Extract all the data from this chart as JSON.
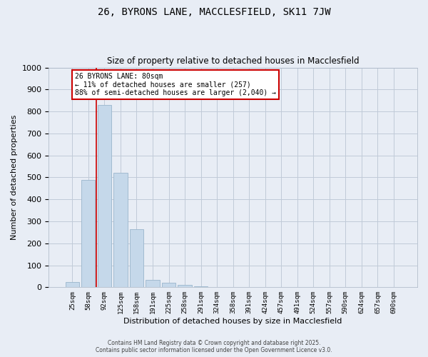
{
  "title": "26, BYRONS LANE, MACCLESFIELD, SK11 7JW",
  "subtitle": "Size of property relative to detached houses in Macclesfield",
  "xlabel": "Distribution of detached houses by size in Macclesfield",
  "ylabel": "Number of detached properties",
  "categories": [
    "25sqm",
    "58sqm",
    "92sqm",
    "125sqm",
    "158sqm",
    "191sqm",
    "225sqm",
    "258sqm",
    "291sqm",
    "324sqm",
    "358sqm",
    "391sqm",
    "424sqm",
    "457sqm",
    "491sqm",
    "524sqm",
    "557sqm",
    "590sqm",
    "624sqm",
    "657sqm",
    "690sqm"
  ],
  "values": [
    25,
    490,
    830,
    520,
    265,
    35,
    20,
    10,
    5,
    0,
    0,
    0,
    0,
    0,
    0,
    0,
    0,
    0,
    0,
    0,
    0
  ],
  "bar_color": "#c5d8ea",
  "bar_edge_color": "#9ab5cc",
  "grid_color": "#c0cad8",
  "background_color": "#e8edf5",
  "annotation_title": "26 BYRONS LANE: 80sqm",
  "annotation_line1": "← 11% of detached houses are smaller (257)",
  "annotation_line2": "88% of semi-detached houses are larger (2,040) →",
  "annotation_box_color": "#ffffff",
  "annotation_box_edge_color": "#cc0000",
  "vline_color": "#cc0000",
  "vline_x_index": 1.5,
  "footer_line1": "Contains HM Land Registry data © Crown copyright and database right 2025.",
  "footer_line2": "Contains public sector information licensed under the Open Government Licence v3.0.",
  "ylim": [
    0,
    1000
  ],
  "yticks": [
    0,
    100,
    200,
    300,
    400,
    500,
    600,
    700,
    800,
    900,
    1000
  ]
}
